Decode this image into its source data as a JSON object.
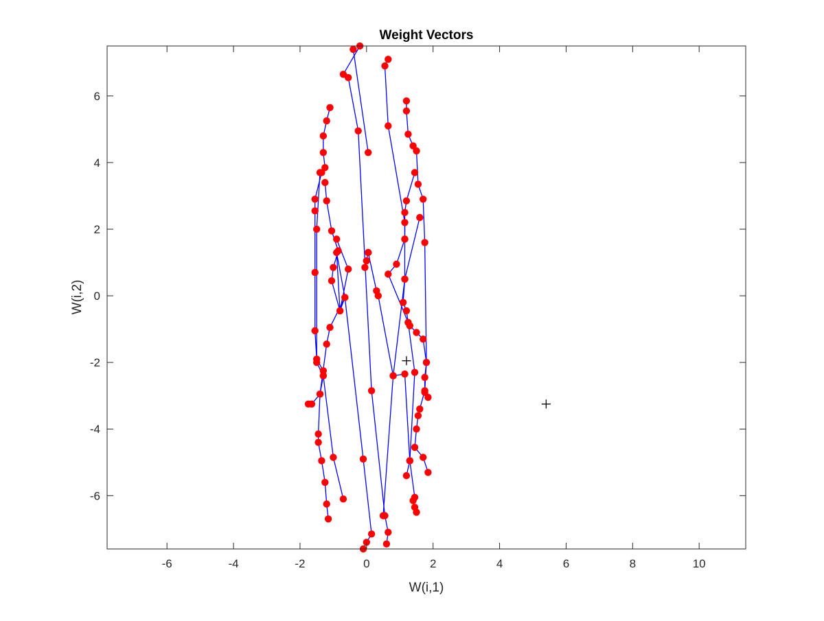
{
  "chart_data": {
    "type": "line",
    "title": "Weight Vectors",
    "xlabel": "W(i,1)",
    "ylabel": "W(i,2)",
    "xlim": [
      -7.8,
      11.4
    ],
    "ylim": [
      -7.6,
      7.5
    ],
    "xticks": [
      -6,
      -4,
      -2,
      0,
      2,
      4,
      6,
      8,
      10
    ],
    "yticks": [
      -6,
      -4,
      -2,
      0,
      2,
      4,
      6
    ],
    "grid": false,
    "colors": {
      "line": "#0000ff",
      "marker": "#ff0000",
      "cross": "#000000",
      "axis": "#262626"
    },
    "series": [
      {
        "values": [
          [
            -0.4,
            7.4
          ],
          [
            0.05,
            4.3
          ]
        ]
      },
      {
        "values": [
          [
            -0.2,
            7.5
          ],
          [
            -0.7,
            6.65
          ],
          [
            -0.55,
            6.55
          ],
          [
            -0.25,
            4.95
          ],
          [
            0.15,
            -2.85
          ],
          [
            0.55,
            -6.6
          ],
          [
            0.65,
            -7.1
          ],
          [
            0.6,
            -7.45
          ]
        ]
      },
      {
        "values": [
          [
            -1.1,
            5.65
          ],
          [
            -1.2,
            5.25
          ],
          [
            -1.3,
            4.8
          ],
          [
            -1.3,
            4.3
          ],
          [
            -1.25,
            3.85
          ],
          [
            -1.35,
            3.7
          ],
          [
            -1.55,
            2.9
          ],
          [
            -1.55,
            2.55
          ],
          [
            -1.55,
            0.7
          ],
          [
            -1.55,
            -1.05
          ],
          [
            -1.5,
            -1.9
          ],
          [
            -1.3,
            -2.25
          ],
          [
            -1.3,
            -2.4
          ],
          [
            -1.4,
            -2.95
          ],
          [
            -1.45,
            -4.15
          ],
          [
            -1.45,
            -4.4
          ],
          [
            -1.35,
            -4.95
          ],
          [
            -1.25,
            -5.6
          ],
          [
            -1.2,
            -6.25
          ],
          [
            -1.15,
            -6.7
          ]
        ]
      },
      {
        "values": [
          [
            -1.25,
            3.4
          ],
          [
            -1.2,
            2.85
          ],
          [
            -1.05,
            1.95
          ],
          [
            -0.85,
            1.35
          ],
          [
            -1.0,
            0.85
          ],
          [
            -1.05,
            0.45
          ],
          [
            -0.8,
            -0.45
          ],
          [
            -0.65,
            -0.05
          ],
          [
            -1.1,
            -0.95
          ],
          [
            -1.2,
            -1.45
          ],
          [
            -1.4,
            -2.95
          ],
          [
            -1.65,
            -3.25
          ],
          [
            -1.75,
            -3.25
          ]
        ]
      },
      {
        "values": [
          [
            -0.9,
            1.7
          ],
          [
            -0.55,
            0.8
          ],
          [
            -0.8,
            -0.45
          ],
          [
            -0.9,
            1.3
          ],
          [
            -0.65,
            -0.05
          ],
          [
            -0.1,
            -4.9
          ],
          [
            0.15,
            -7.15
          ],
          [
            0.0,
            -7.4
          ],
          [
            -0.1,
            -7.6
          ]
        ]
      },
      {
        "values": [
          [
            -1.4,
            3.7
          ],
          [
            -1.5,
            2.0
          ],
          [
            -1.5,
            -2.0
          ],
          [
            -1.3,
            -2.4
          ],
          [
            -1.0,
            -4.85
          ],
          [
            -0.7,
            -6.1
          ]
        ]
      },
      {
        "values": [
          [
            0.65,
            7.1
          ],
          [
            0.55,
            6.9
          ],
          [
            0.65,
            5.1
          ],
          [
            1.15,
            2.2
          ],
          [
            1.15,
            1.7
          ],
          [
            1.15,
            0.5
          ],
          [
            1.1,
            -0.2
          ],
          [
            1.2,
            -0.45
          ],
          [
            1.25,
            -0.8
          ],
          [
            1.3,
            -0.9
          ],
          [
            1.5,
            -1.1
          ],
          [
            1.7,
            -1.3
          ],
          [
            1.8,
            -2.0
          ],
          [
            1.75,
            -2.45
          ],
          [
            1.75,
            -2.9
          ],
          [
            1.85,
            -3.05
          ]
        ]
      },
      {
        "values": [
          [
            1.2,
            5.85
          ],
          [
            1.2,
            5.55
          ],
          [
            1.25,
            4.85
          ],
          [
            1.4,
            4.5
          ],
          [
            1.5,
            4.35
          ],
          [
            1.55,
            3.35
          ],
          [
            1.7,
            2.9
          ],
          [
            1.75,
            1.6
          ],
          [
            1.8,
            -2.0
          ],
          [
            1.75,
            -2.85
          ],
          [
            1.6,
            -3.4
          ],
          [
            1.55,
            -3.6
          ],
          [
            1.5,
            -4.0
          ],
          [
            1.45,
            -4.55
          ],
          [
            1.7,
            -4.85
          ],
          [
            1.85,
            -5.3
          ]
        ]
      },
      {
        "values": [
          [
            1.45,
            3.7
          ],
          [
            1.2,
            2.85
          ],
          [
            1.15,
            2.5
          ],
          [
            1.15,
            1.7
          ],
          [
            0.9,
            0.95
          ],
          [
            0.65,
            0.65
          ],
          [
            1.25,
            -0.8
          ],
          [
            1.45,
            -2.3
          ],
          [
            1.3,
            -4.95
          ],
          [
            1.2,
            -5.4
          ]
        ]
      },
      {
        "values": [
          [
            1.6,
            2.35
          ],
          [
            1.15,
            0.5
          ],
          [
            0.8,
            -2.4
          ],
          [
            0.5,
            -6.6
          ]
        ]
      },
      {
        "values": [
          [
            0.05,
            1.3
          ],
          [
            0.3,
            0.15
          ],
          [
            0.35,
            0.0
          ],
          [
            0.8,
            -2.4
          ],
          [
            1.15,
            -2.35
          ],
          [
            1.3,
            -4.95
          ],
          [
            1.45,
            -6.05
          ],
          [
            1.4,
            -6.15
          ],
          [
            1.45,
            -6.35
          ],
          [
            1.5,
            -6.5
          ]
        ]
      },
      {
        "values": [
          [
            -0.05,
            0.85
          ],
          [
            0.0,
            1.05
          ],
          [
            0.05,
            1.3
          ]
        ]
      }
    ],
    "crosses": [
      [
        1.2,
        -1.95
      ],
      [
        5.4,
        -3.25
      ]
    ]
  }
}
